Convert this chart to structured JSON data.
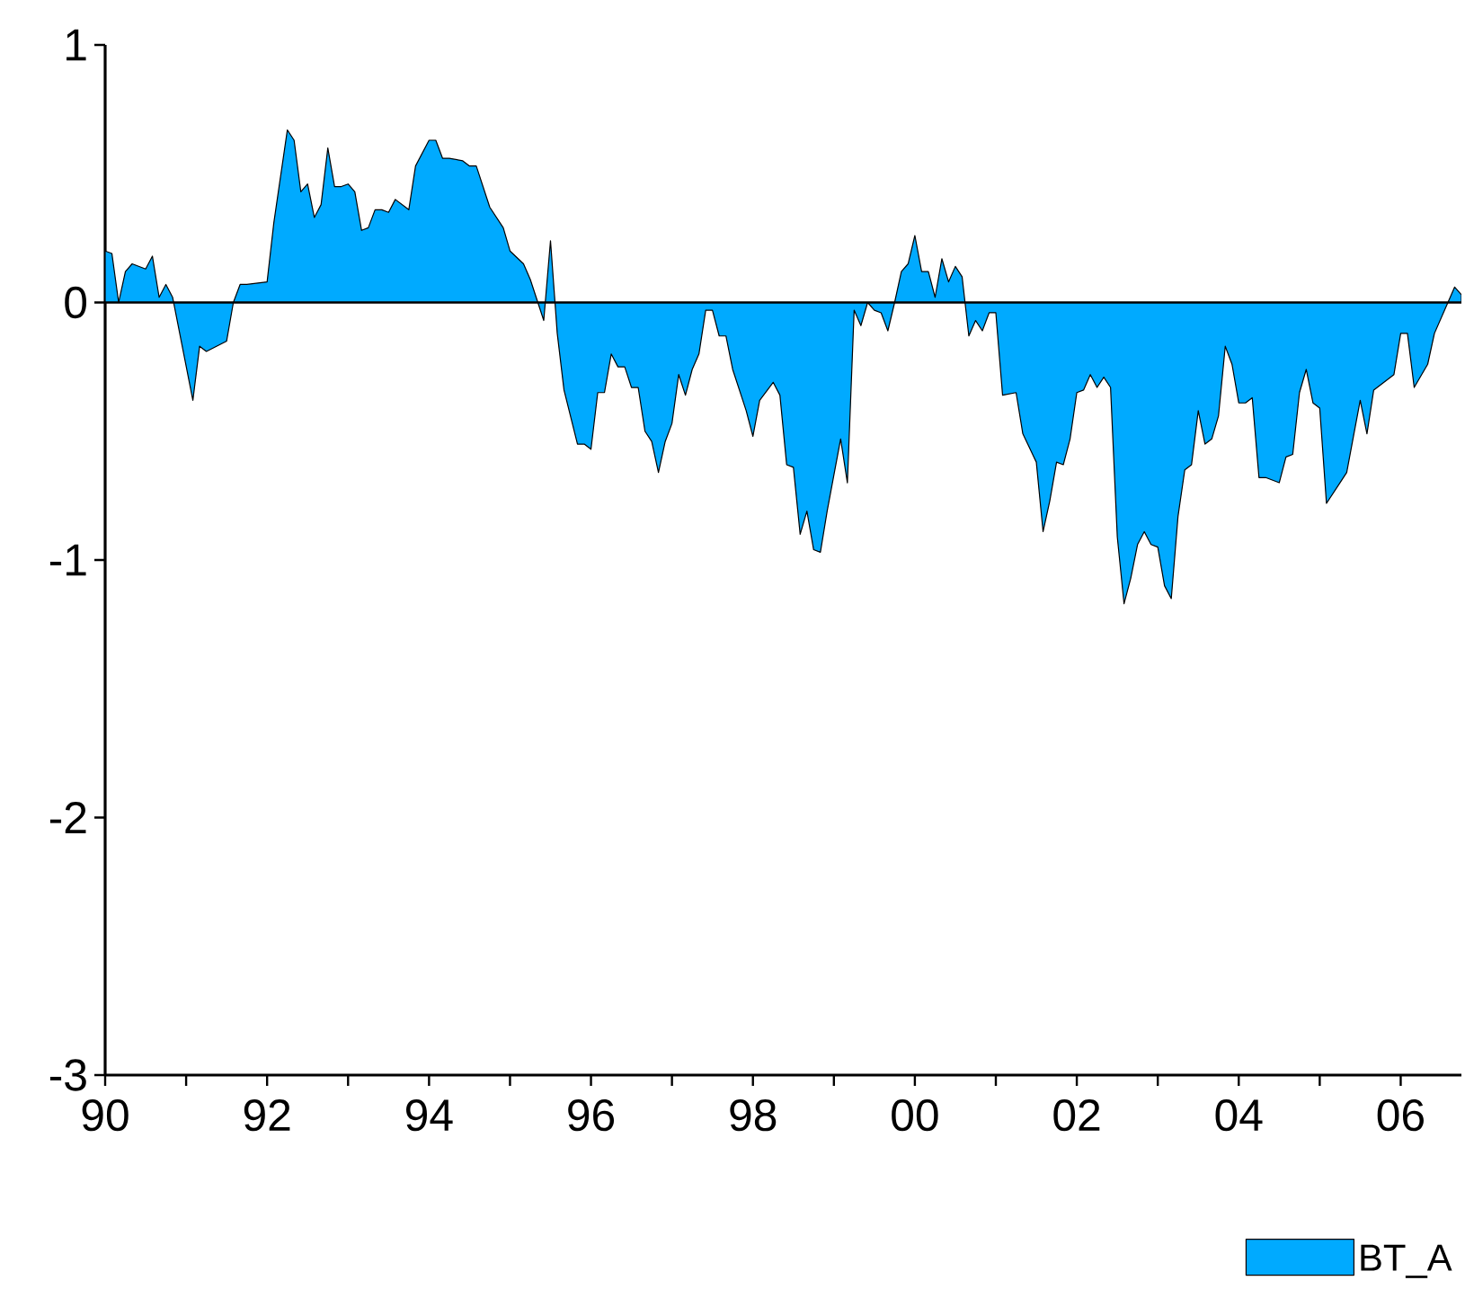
{
  "chart_data": {
    "type": "area",
    "x": [
      "1990-01",
      "1990-02",
      "1990-03",
      "1990-04",
      "1990-05",
      "1990-07",
      "1990-08",
      "1990-09",
      "1990-10",
      "1990-11",
      "1991-02",
      "1991-03",
      "1991-04",
      "1991-07",
      "1991-08",
      "1991-09",
      "1991-10",
      "1992-01",
      "1992-02",
      "1992-04",
      "1992-05",
      "1992-06",
      "1992-07",
      "1992-08",
      "1992-09",
      "1992-10",
      "1992-11",
      "1992-12",
      "1993-01",
      "1993-02",
      "1993-03",
      "1993-04",
      "1993-05",
      "1993-06",
      "1993-07",
      "1993-08",
      "1993-10",
      "1993-11",
      "1994-01",
      "1994-02",
      "1994-03",
      "1994-04",
      "1994-06",
      "1994-07",
      "1994-08",
      "1994-10",
      "1994-12",
      "1995-01",
      "1995-03",
      "1995-04",
      "1995-06",
      "1995-07",
      "1995-08",
      "1995-09",
      "1995-11",
      "1995-12",
      "1996-01",
      "1996-02",
      "1996-03",
      "1996-04",
      "1996-05",
      "1996-06",
      "1996-07",
      "1996-08",
      "1996-09",
      "1996-10",
      "1996-11",
      "1996-12",
      "1997-01",
      "1997-02",
      "1997-03",
      "1997-04",
      "1997-05",
      "1997-06",
      "1997-07",
      "1997-08",
      "1997-09",
      "1997-10",
      "1997-12",
      "1998-01",
      "1998-02",
      "1998-04",
      "1998-05",
      "1998-06",
      "1998-07",
      "1998-08",
      "1998-09",
      "1998-10",
      "1998-11",
      "1998-12",
      "1999-01",
      "1999-02",
      "1999-03",
      "1999-04",
      "1999-05",
      "1999-06",
      "1999-07",
      "1999-08",
      "1999-09",
      "1999-10",
      "1999-11",
      "1999-12",
      "2000-01",
      "2000-02",
      "2000-03",
      "2000-04",
      "2000-05",
      "2000-06",
      "2000-07",
      "2000-08",
      "2000-09",
      "2000-10",
      "2000-11",
      "2000-12",
      "2001-01",
      "2001-02",
      "2001-04",
      "2001-05",
      "2001-07",
      "2001-08",
      "2001-09",
      "2001-10",
      "2001-11",
      "2001-12",
      "2002-01",
      "2002-02",
      "2002-03",
      "2002-04",
      "2002-05",
      "2002-06",
      "2002-07",
      "2002-08",
      "2002-09",
      "2002-10",
      "2002-11",
      "2002-12",
      "2003-01",
      "2003-02",
      "2003-03",
      "2003-04",
      "2003-05",
      "2003-06",
      "2003-07",
      "2003-08",
      "2003-09",
      "2003-10",
      "2003-11",
      "2003-12",
      "2004-01",
      "2004-02",
      "2004-03",
      "2004-04",
      "2004-05",
      "2004-07",
      "2004-08",
      "2004-09",
      "2004-10",
      "2004-11",
      "2004-12",
      "2005-01",
      "2005-02",
      "2005-04",
      "2005-05",
      "2005-06",
      "2005-07",
      "2005-08",
      "2005-09",
      "2005-10",
      "2005-12",
      "2006-01",
      "2006-02",
      "2006-03",
      "2006-05",
      "2006-06",
      "2006-08",
      "2006-09",
      "2006-10"
    ],
    "series": [
      {
        "name": "BT_A",
        "color": "#00aaff",
        "values": [
          0.2,
          0.19,
          0.0,
          0.12,
          0.15,
          0.13,
          0.18,
          0.02,
          0.07,
          0.02,
          -0.38,
          -0.17,
          -0.19,
          -0.15,
          0.0,
          0.07,
          0.07,
          0.08,
          0.31,
          0.67,
          0.63,
          0.43,
          0.46,
          0.33,
          0.38,
          0.6,
          0.45,
          0.45,
          0.46,
          0.43,
          0.28,
          0.29,
          0.36,
          0.36,
          0.35,
          0.4,
          0.36,
          0.53,
          0.63,
          0.63,
          0.56,
          0.56,
          0.55,
          0.53,
          0.53,
          0.37,
          0.29,
          0.2,
          0.15,
          0.09,
          -0.07,
          0.24,
          -0.12,
          -0.34,
          -0.55,
          -0.55,
          -0.57,
          -0.35,
          -0.35,
          -0.2,
          -0.25,
          -0.25,
          -0.33,
          -0.33,
          -0.5,
          -0.54,
          -0.66,
          -0.54,
          -0.47,
          -0.28,
          -0.36,
          -0.26,
          -0.2,
          -0.03,
          -0.03,
          -0.13,
          -0.13,
          -0.26,
          -0.42,
          -0.52,
          -0.38,
          -0.31,
          -0.36,
          -0.63,
          -0.64,
          -0.9,
          -0.81,
          -0.96,
          -0.97,
          -0.81,
          -0.67,
          -0.53,
          -0.7,
          -0.03,
          -0.09,
          0.0,
          -0.03,
          -0.04,
          -0.11,
          0.0,
          0.12,
          0.15,
          0.26,
          0.12,
          0.12,
          0.02,
          0.17,
          0.08,
          0.14,
          0.1,
          -0.13,
          -0.07,
          -0.11,
          -0.04,
          -0.04,
          -0.36,
          -0.35,
          -0.51,
          -0.62,
          -0.89,
          -0.77,
          -0.62,
          -0.63,
          -0.53,
          -0.35,
          -0.34,
          -0.28,
          -0.33,
          -0.29,
          -0.33,
          -0.91,
          -1.17,
          -1.07,
          -0.94,
          -0.89,
          -0.94,
          -0.95,
          -1.1,
          -1.15,
          -0.83,
          -0.65,
          -0.63,
          -0.42,
          -0.55,
          -0.53,
          -0.44,
          -0.17,
          -0.24,
          -0.39,
          -0.39,
          -0.37,
          -0.68,
          -0.68,
          -0.7,
          -0.6,
          -0.59,
          -0.35,
          -0.26,
          -0.39,
          -0.41,
          -0.78,
          -0.7,
          -0.66,
          -0.52,
          -0.38,
          -0.51,
          -0.34,
          -0.32,
          -0.28,
          -0.12,
          -0.12,
          -0.33,
          -0.24,
          -0.12,
          0.0,
          0.06,
          0.03
        ]
      }
    ],
    "xlim": [
      "1990-01",
      "2006-10"
    ],
    "xticks": [
      {
        "value": "1990",
        "label": "90"
      },
      {
        "value": "1991",
        "label": null
      },
      {
        "value": "1992",
        "label": "92"
      },
      {
        "value": "1993",
        "label": null
      },
      {
        "value": "1994",
        "label": "94"
      },
      {
        "value": "1995",
        "label": null
      },
      {
        "value": "1996",
        "label": "96"
      },
      {
        "value": "1997",
        "label": null
      },
      {
        "value": "1998",
        "label": "98"
      },
      {
        "value": "1999",
        "label": null
      },
      {
        "value": "2000",
        "label": "00"
      },
      {
        "value": "2001",
        "label": null
      },
      {
        "value": "2002",
        "label": "02"
      },
      {
        "value": "2003",
        "label": null
      },
      {
        "value": "2004",
        "label": "04"
      },
      {
        "value": "2005",
        "label": null
      },
      {
        "value": "2006",
        "label": "06"
      }
    ],
    "ylim": [
      -3,
      1
    ],
    "yticks": [
      -3,
      -2,
      -1,
      0,
      1
    ],
    "ref_lines": [
      {
        "axis": "y",
        "value": 0,
        "color": "#000000"
      }
    ],
    "legend": "bottom right"
  }
}
